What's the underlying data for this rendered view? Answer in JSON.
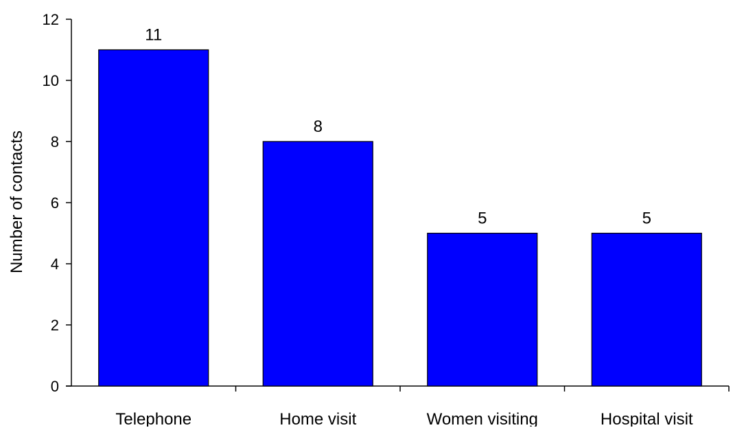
{
  "chart_data": {
    "type": "bar",
    "categories": [
      "Telephone",
      "Home visit",
      "Women visiting",
      "Hospital visit"
    ],
    "values": [
      11,
      8,
      5,
      5
    ],
    "data_labels": [
      "11",
      "8",
      "5",
      "5"
    ],
    "title": "",
    "xlabel": "",
    "ylabel": "Number of contacts",
    "ylim": [
      0,
      12
    ],
    "yticks": [
      0,
      2,
      4,
      6,
      8,
      10,
      12
    ],
    "ytick_labels": [
      "0",
      "2",
      "4",
      "6",
      "8",
      "10",
      "12"
    ],
    "grid": false,
    "legend": "none",
    "colors": {
      "bar_fill": "#0000FF",
      "bar_stroke": "#000000",
      "axis": "#000000"
    }
  }
}
